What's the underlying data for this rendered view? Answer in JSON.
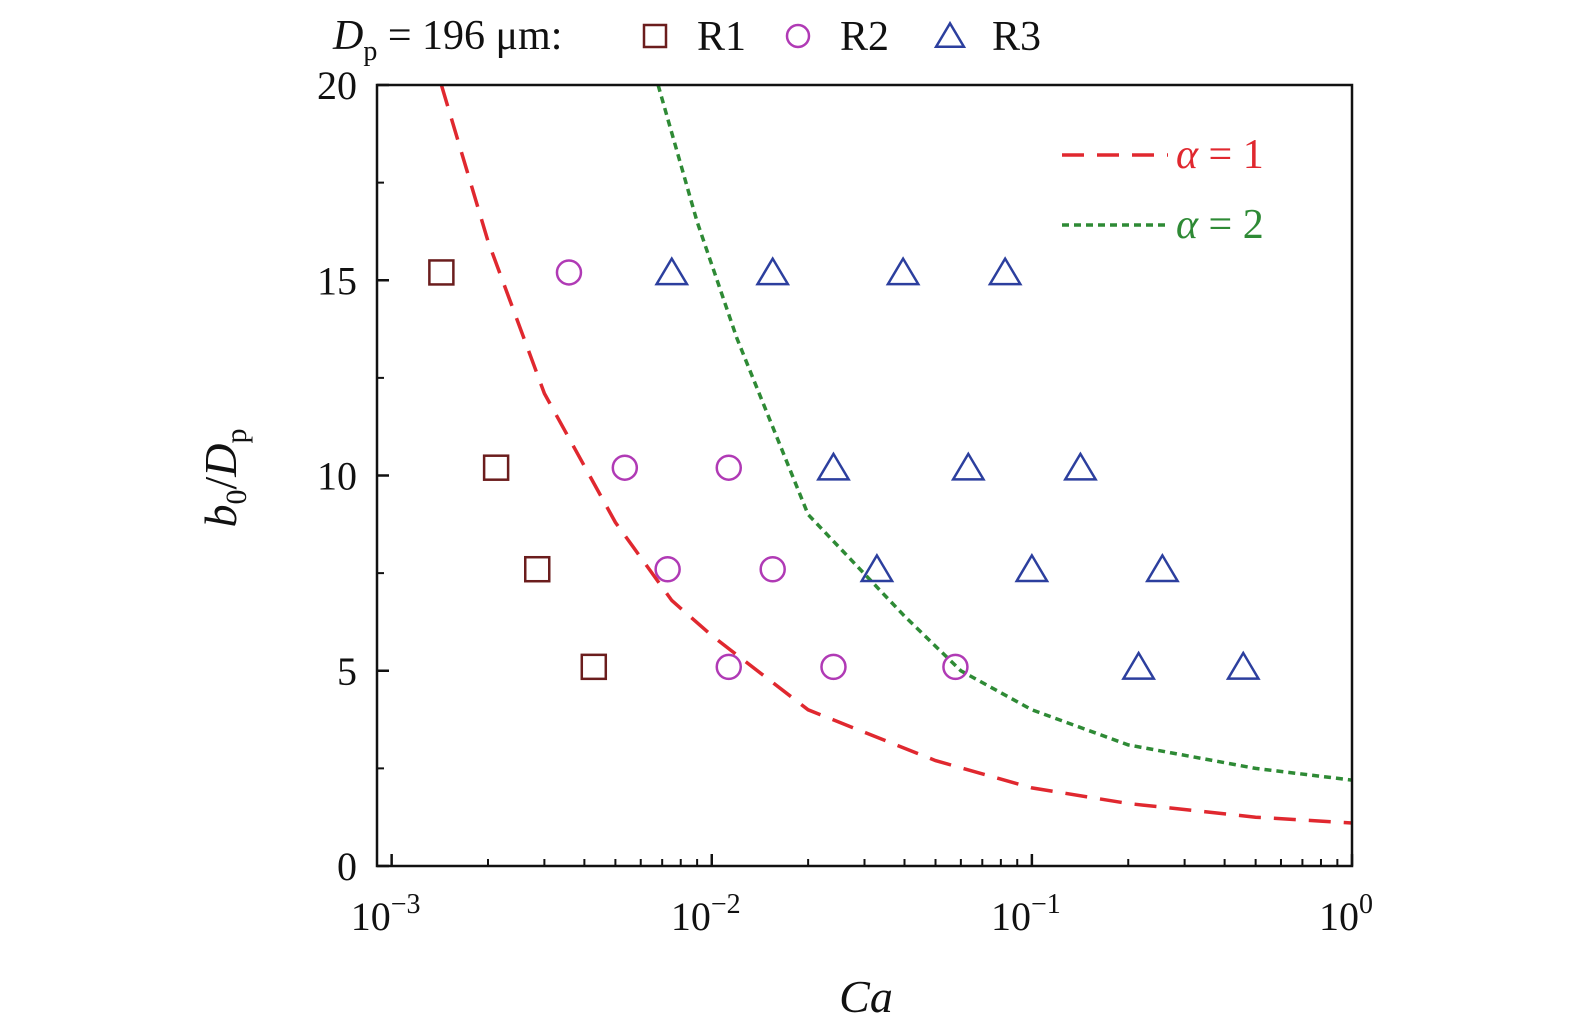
{
  "chart_data": {
    "type": "scatter",
    "x_scale": "log",
    "xlim": [
      0.0009,
      1.0
    ],
    "ylim": [
      0,
      20
    ],
    "xlabel": "Ca",
    "ylabel": {
      "main": "b",
      "sub0": "0",
      "slash": "/",
      "main2": "D",
      "sub1": "p"
    },
    "x_ticks": [
      {
        "value": 0.001,
        "base": "10",
        "exp": "−3"
      },
      {
        "value": 0.01,
        "base": "10",
        "exp": "−2"
      },
      {
        "value": 0.1,
        "base": "10",
        "exp": "−1"
      },
      {
        "value": 1,
        "base": "10",
        "exp": "0"
      }
    ],
    "y_ticks": [
      0,
      5,
      10,
      15,
      20
    ],
    "header": {
      "symbol": "D",
      "sub": "p",
      "text": " = 196 μm:"
    },
    "series": [
      {
        "name": "R1",
        "marker": "square",
        "color": "#6b1d1d",
        "points": [
          [
            0.00143,
            15.2
          ],
          [
            0.00212,
            10.2
          ],
          [
            0.00285,
            7.6
          ],
          [
            0.00428,
            5.1
          ]
        ]
      },
      {
        "name": "R2",
        "marker": "circle",
        "color": "#b03ab5",
        "points": [
          [
            0.00358,
            15.2
          ],
          [
            0.00535,
            10.2
          ],
          [
            0.0113,
            10.2
          ],
          [
            0.00728,
            7.6
          ],
          [
            0.0155,
            7.6
          ],
          [
            0.0113,
            5.1
          ],
          [
            0.024,
            5.1
          ],
          [
            0.0577,
            5.1
          ]
        ]
      },
      {
        "name": "R3",
        "marker": "triangle",
        "color": "#2c3f9e",
        "points": [
          [
            0.0075,
            15.2
          ],
          [
            0.0155,
            15.2
          ],
          [
            0.0396,
            15.2
          ],
          [
            0.0825,
            15.2
          ],
          [
            0.024,
            10.2
          ],
          [
            0.0633,
            10.2
          ],
          [
            0.1418,
            10.2
          ],
          [
            0.0328,
            7.6
          ],
          [
            0.1,
            7.6
          ],
          [
            0.2557,
            7.6
          ],
          [
            0.2155,
            5.1
          ],
          [
            0.4574,
            5.1
          ]
        ]
      }
    ],
    "curves": [
      {
        "name": "α = 1",
        "symbol": "α",
        "value": "= 1",
        "style": "dashed",
        "color": "#e0282f",
        "points": [
          [
            0.00143,
            20
          ],
          [
            0.002,
            16
          ],
          [
            0.003,
            12.1
          ],
          [
            0.005,
            8.8
          ],
          [
            0.0075,
            6.8
          ],
          [
            0.01,
            5.9
          ],
          [
            0.02,
            4.0
          ],
          [
            0.05,
            2.7
          ],
          [
            0.1,
            2.0
          ],
          [
            0.2,
            1.6
          ],
          [
            0.5,
            1.25
          ],
          [
            1.0,
            1.1
          ]
        ]
      },
      {
        "name": "α = 2",
        "symbol": "α",
        "value": "= 2",
        "style": "dotted",
        "color": "#2e8a35",
        "points": [
          [
            0.0068,
            20
          ],
          [
            0.009,
            16.5
          ],
          [
            0.012,
            13.5
          ],
          [
            0.02,
            9.0
          ],
          [
            0.04,
            6.4
          ],
          [
            0.06,
            5.0
          ],
          [
            0.1,
            4.0
          ],
          [
            0.2,
            3.1
          ],
          [
            0.5,
            2.5
          ],
          [
            1.0,
            2.2
          ]
        ]
      }
    ]
  }
}
